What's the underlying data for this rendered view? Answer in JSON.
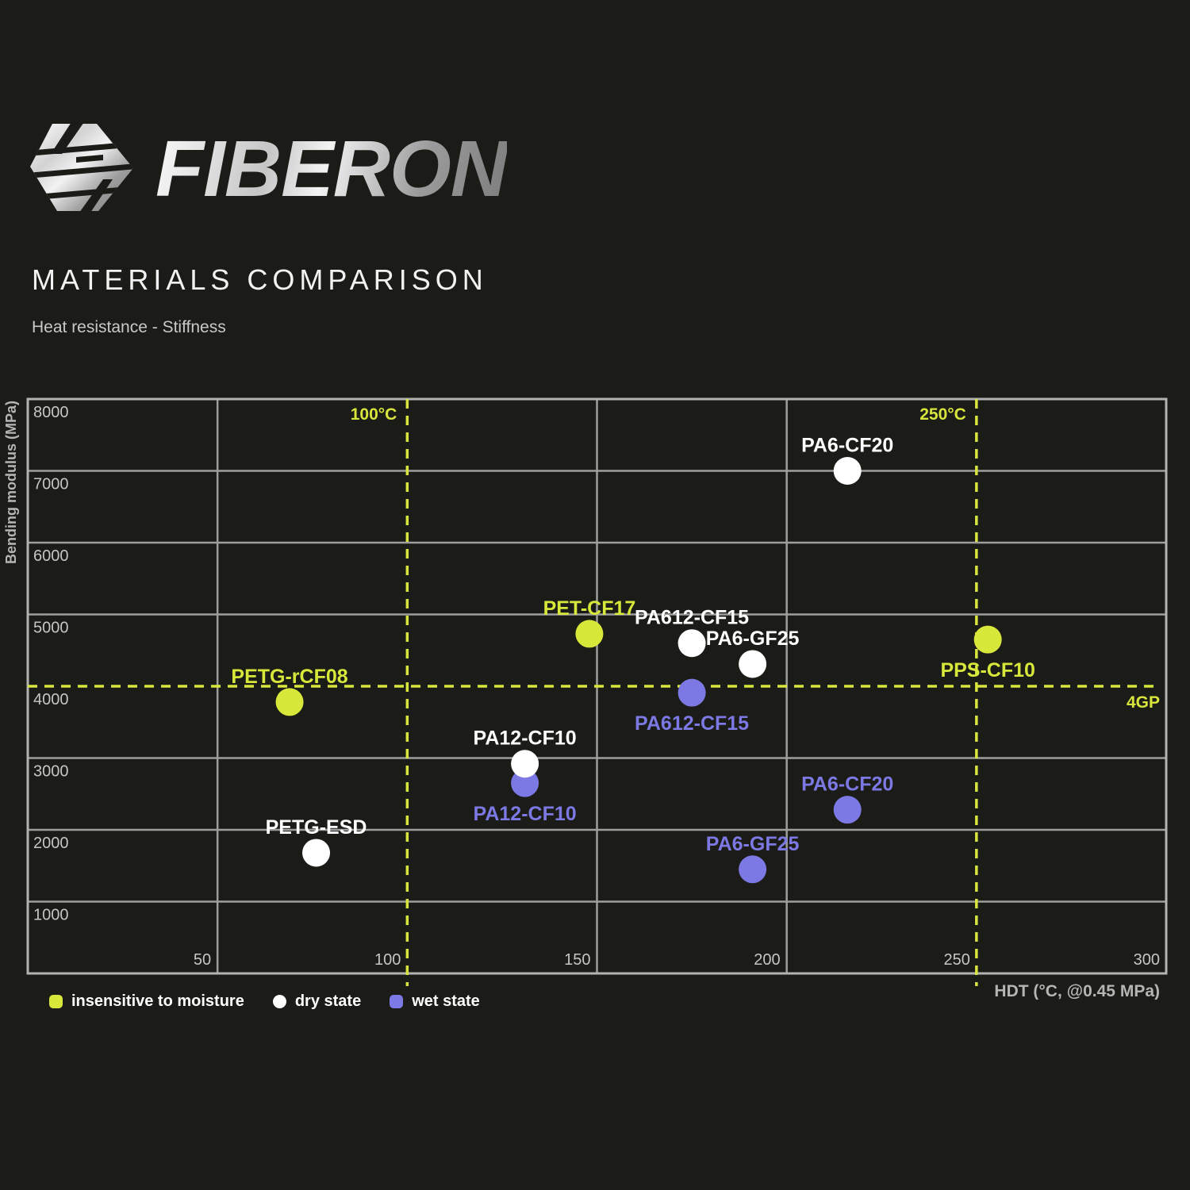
{
  "header": {
    "brand": "FIBERON",
    "title": "MATERIALS COMPARISON",
    "subtitle": "Heat resistance - Stiffness"
  },
  "legend": {
    "items": [
      {
        "label": "insensitive to moisture",
        "color": "#d7e83b",
        "shape": "square"
      },
      {
        "label": "dry state",
        "color": "#ffffff",
        "shape": "circle"
      },
      {
        "label": "wet state",
        "color": "#7c79e4",
        "shape": "square"
      }
    ]
  },
  "chart_data": {
    "type": "scatter",
    "xlabel": "HDT (°C, @0.45 MPa)",
    "ylabel": "Bending modulus (MPa)",
    "xlim": [
      0,
      300
    ],
    "ylim": [
      0,
      8000
    ],
    "x_ticks": [
      50,
      100,
      150,
      200,
      250,
      300
    ],
    "y_ticks": [
      1000,
      2000,
      3000,
      4000,
      5000,
      6000,
      7000,
      8000
    ],
    "x_gridlines_solid": [
      50,
      150,
      200
    ],
    "y_gridlines_solid": [
      1000,
      2000,
      3000,
      5000,
      6000,
      7000
    ],
    "guide_lines": {
      "vertical": [
        {
          "value": 100,
          "label": "100°C"
        },
        {
          "value": 250,
          "label": "250°C"
        }
      ],
      "horizontal": [
        {
          "value": 4000,
          "label": "4GP"
        }
      ]
    },
    "series": [
      {
        "name": "insensitive to moisture",
        "color": "#d7e83b",
        "points": [
          {
            "label": "PETG-rCF08",
            "x": 69,
            "y": 3780,
            "label_pos": "above"
          },
          {
            "label": "PET-CF17",
            "x": 148,
            "y": 4730,
            "label_pos": "above"
          },
          {
            "label": "PPS-CF10",
            "x": 253,
            "y": 4650,
            "label_pos": "below"
          }
        ]
      },
      {
        "name": "wet state",
        "color": "#7c79e4",
        "points": [
          {
            "label": "PA12-CF10",
            "x": 131,
            "y": 2650,
            "label_pos": "below"
          },
          {
            "label": "PA612-CF15",
            "x": 175,
            "y": 3910,
            "label_pos": "below"
          },
          {
            "label": "PA6-GF25",
            "x": 191,
            "y": 1450,
            "label_pos": "above"
          },
          {
            "label": "PA6-CF20",
            "x": 216,
            "y": 2280,
            "label_pos": "above"
          }
        ]
      },
      {
        "name": "dry state",
        "color": "#ffffff",
        "points": [
          {
            "label": "PETG-ESD",
            "x": 76,
            "y": 1680,
            "label_pos": "above"
          },
          {
            "label": "PA12-CF10",
            "x": 131,
            "y": 2920,
            "label_pos": "above"
          },
          {
            "label": "PA612-CF15",
            "x": 175,
            "y": 4600,
            "label_pos": "above"
          },
          {
            "label": "PA6-GF25",
            "x": 191,
            "y": 4310,
            "label_pos": "above"
          },
          {
            "label": "PA6-CF20",
            "x": 216,
            "y": 7000,
            "label_pos": "above"
          }
        ]
      }
    ],
    "colors": {
      "background": "#1b1b17",
      "grid": "#9e9e9e",
      "border": "#b3b3b3",
      "tick": "#c6c6c6",
      "axis_title": "#b5b5b5",
      "accent": "#d8e53c"
    },
    "point_radius": 17.5,
    "legend_position": "bottom-left",
    "grid": true
  }
}
